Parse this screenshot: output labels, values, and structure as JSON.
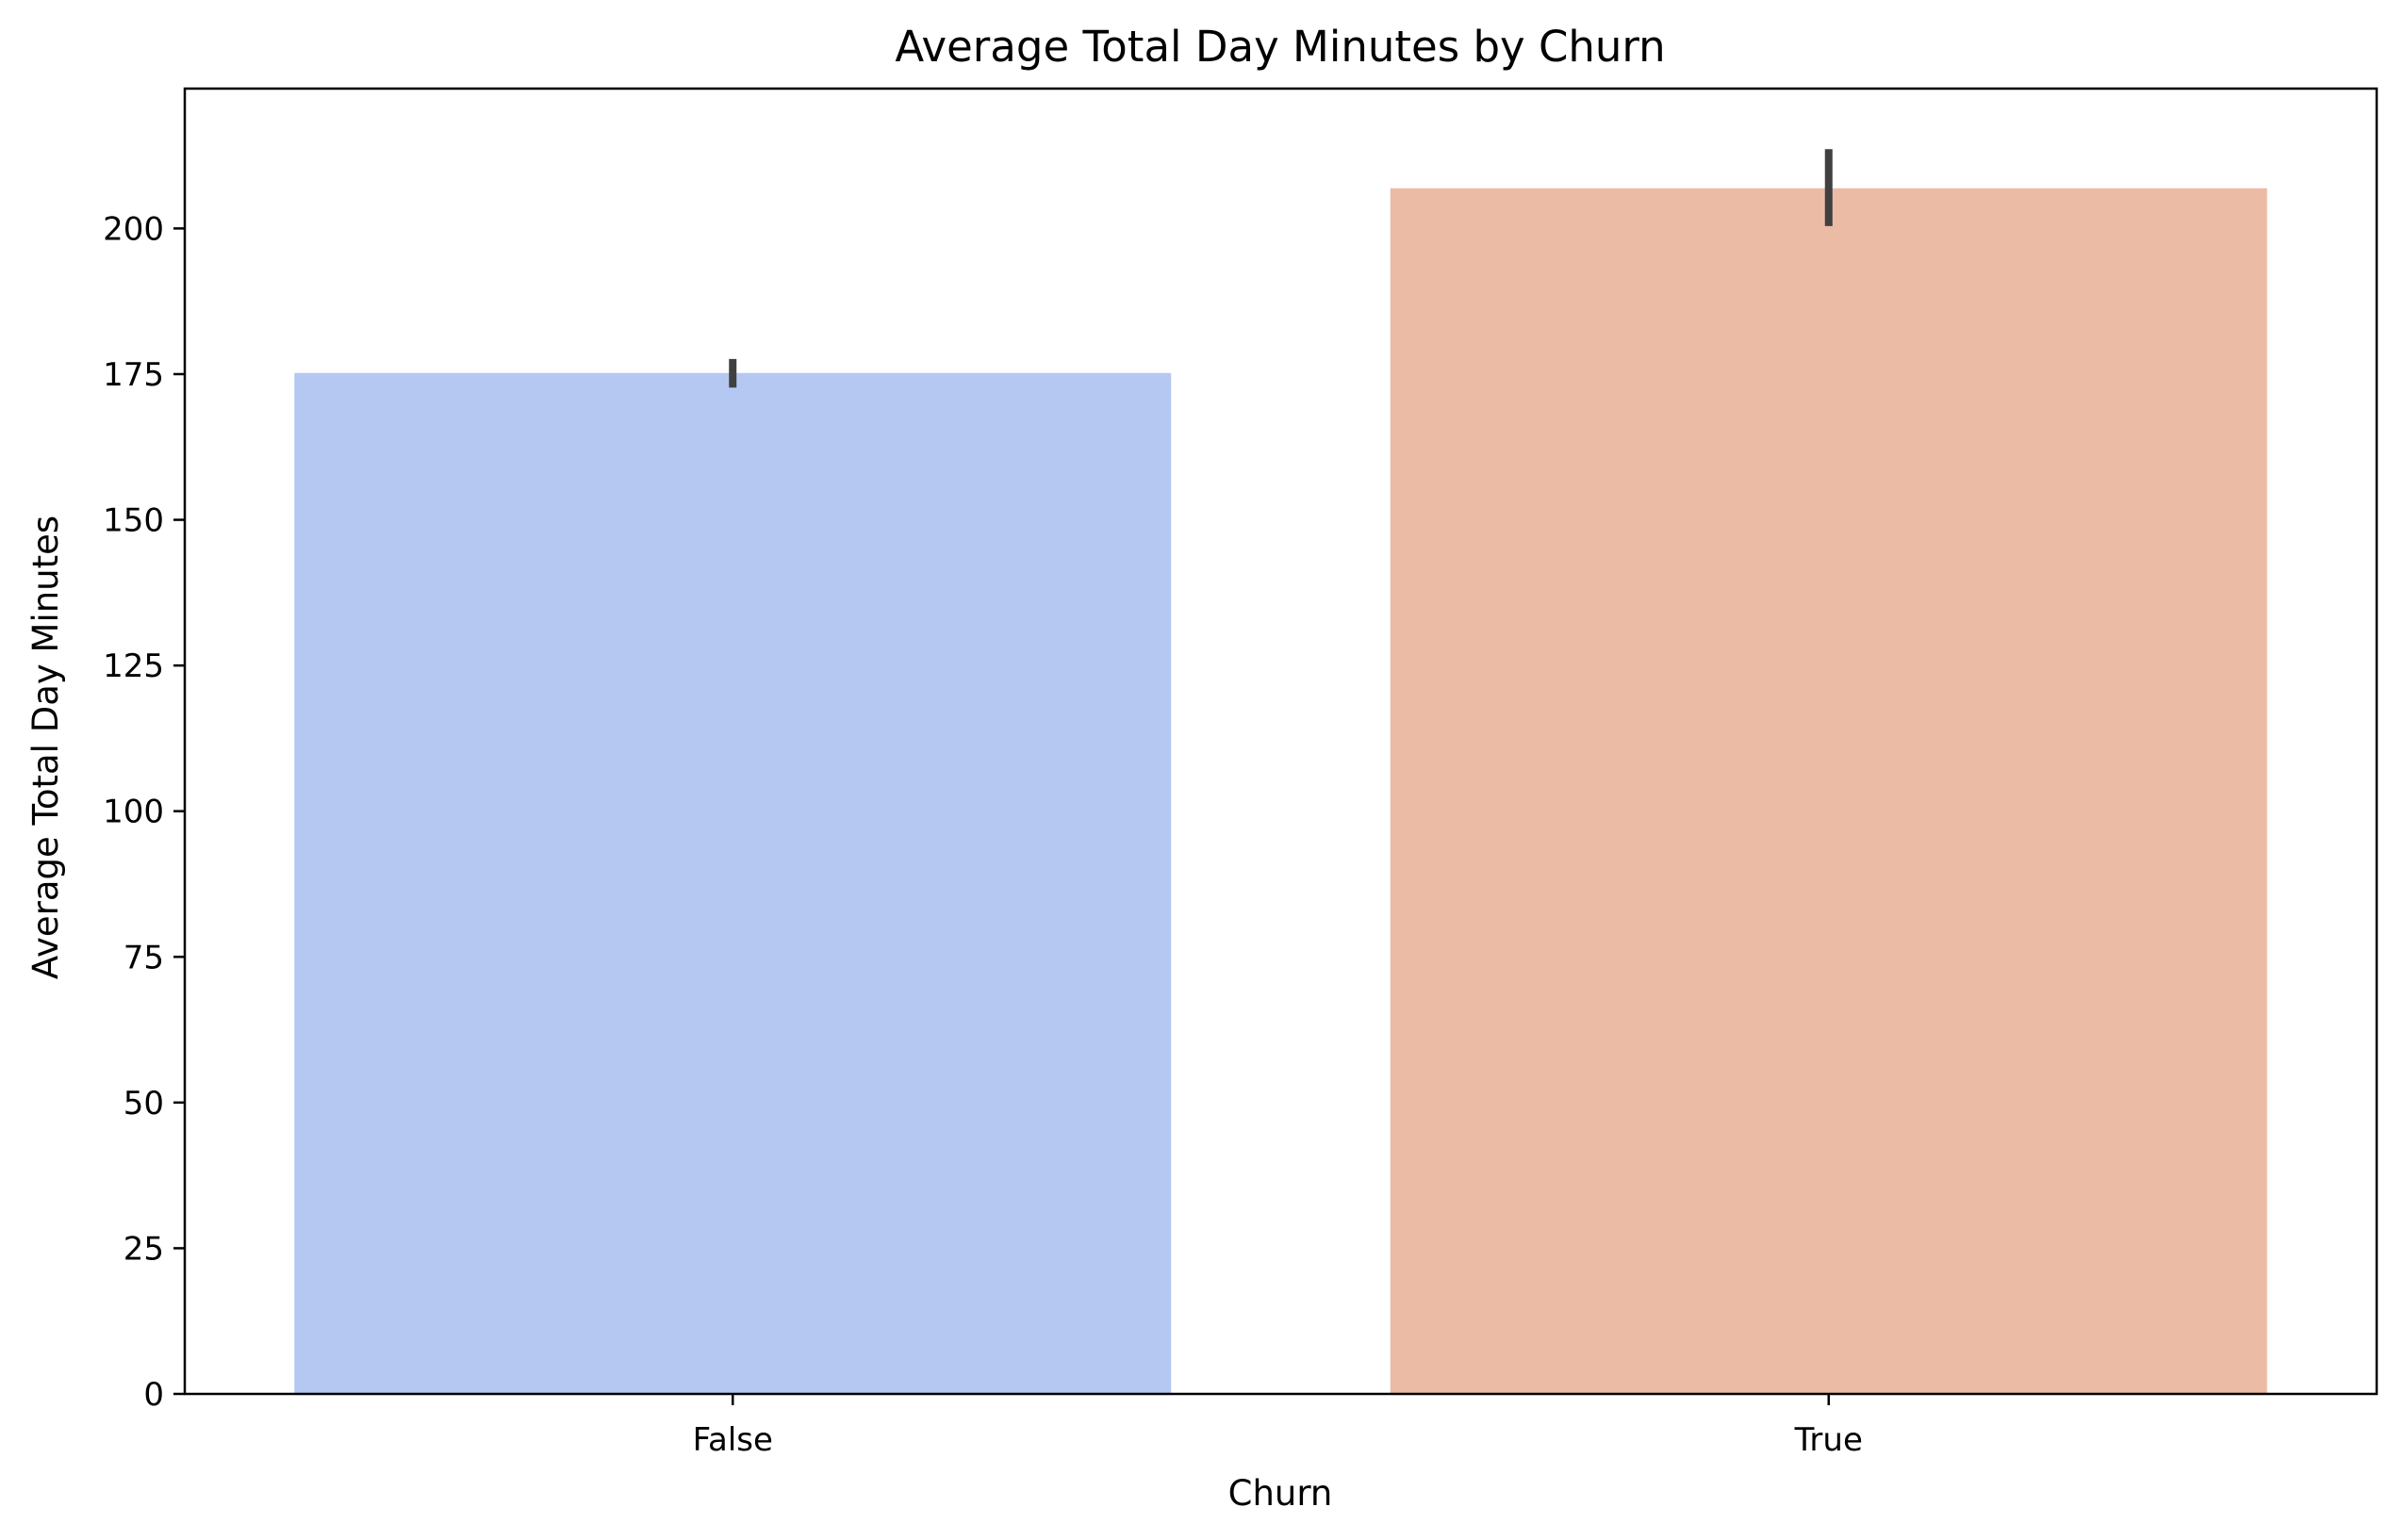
{
  "chart_data": {
    "type": "bar",
    "title": "Average Total Day Minutes by Churn",
    "xlabel": "Churn",
    "ylabel": "Average Total Day Minutes",
    "categories": [
      "False",
      "True"
    ],
    "values": [
      175.2,
      206.9
    ],
    "error_bars": [
      [
        172.7,
        177.6
      ],
      [
        200.4,
        213.6
      ]
    ],
    "colors": [
      "#b4c8f2",
      "#ecbba6"
    ],
    "error_bar_color": "#404040",
    "ylim": [
      0,
      224
    ],
    "yticks": [
      0,
      25,
      50,
      75,
      100,
      125,
      150,
      175,
      200
    ],
    "grid": false,
    "legend": "none"
  }
}
